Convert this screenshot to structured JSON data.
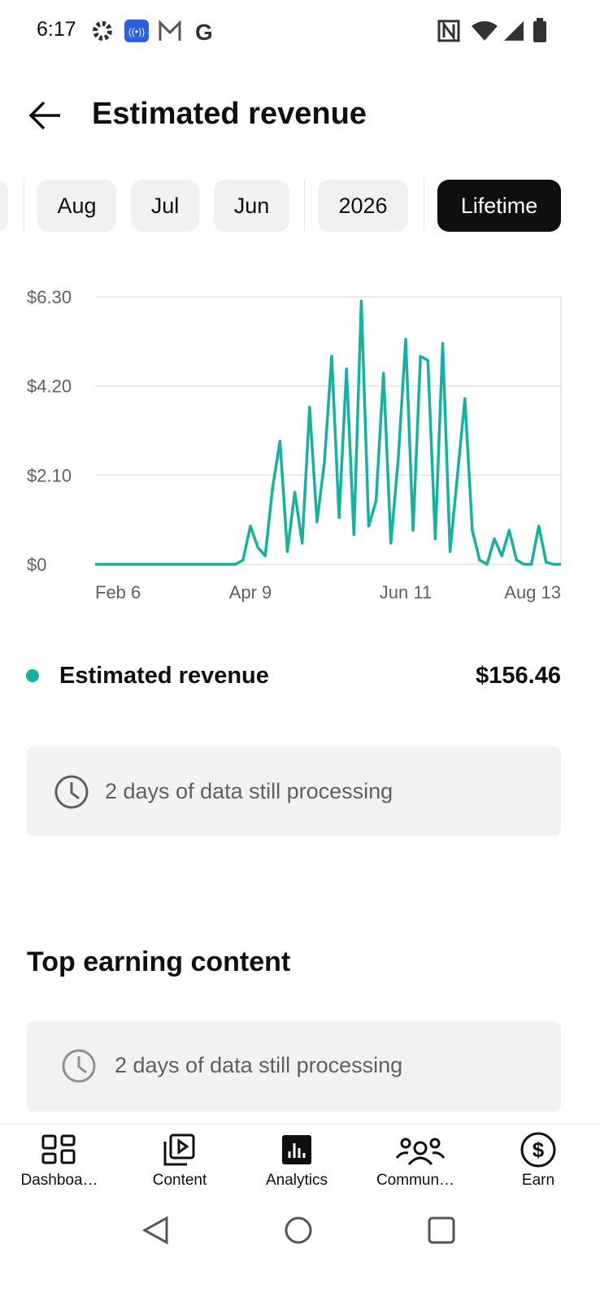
{
  "status_bar": {
    "time": "6:17"
  },
  "header": {
    "title": "Estimated revenue"
  },
  "filters": [
    "Aug",
    "Jul",
    "Jun",
    "2026",
    "Lifetime"
  ],
  "chart_data": {
    "type": "line",
    "categories": [
      "Feb 6",
      null,
      null,
      null,
      null,
      null,
      null,
      null,
      null,
      null,
      null,
      null,
      null,
      null,
      null,
      null,
      null,
      null,
      null,
      null,
      null,
      "Apr 9",
      null,
      null,
      null,
      null,
      null,
      null,
      null,
      null,
      null,
      null,
      null,
      null,
      null,
      null,
      null,
      null,
      null,
      null,
      null,
      null,
      "Jun 11",
      null,
      null,
      null,
      null,
      null,
      null,
      null,
      null,
      null,
      null,
      null,
      null,
      null,
      null,
      null,
      null,
      null,
      null,
      null,
      null,
      "Aug 13"
    ],
    "series": [
      {
        "name": "Estimated revenue",
        "color": "#14b3a0",
        "values": [
          0,
          0,
          0,
          0,
          0,
          0,
          0,
          0,
          0,
          0,
          0,
          0,
          0,
          0,
          0,
          0,
          0,
          0,
          0,
          0,
          0.1,
          0.9,
          0.4,
          0.2,
          1.8,
          2.9,
          0.3,
          1.7,
          0.5,
          3.7,
          1.0,
          2.4,
          4.9,
          1.1,
          4.6,
          0.7,
          6.2,
          0.9,
          1.5,
          4.5,
          0.5,
          2.5,
          5.3,
          0.8,
          4.9,
          4.8,
          0.6,
          5.2,
          0.3,
          2.1,
          3.9,
          0.8,
          0.1,
          0,
          0.6,
          0.2,
          0.8,
          0.1,
          0,
          0,
          0.9,
          0.05,
          0,
          0
        ]
      }
    ],
    "ylim": [
      0,
      6.3
    ],
    "yticks": [
      {
        "value": 0,
        "label": "$0"
      },
      {
        "value": 2.1,
        "label": "$2.10"
      },
      {
        "value": 4.2,
        "label": "$4.20"
      },
      {
        "value": 6.3,
        "label": "$6.30"
      }
    ],
    "grid": true
  },
  "summary": {
    "value": "$156.46"
  },
  "processing_note": "2 days of data still processing",
  "section_title": "Top earning content",
  "section_note": "2 days of data still processing",
  "nav": [
    "Dashboa…",
    "Content",
    "Analytics",
    "Commun…",
    "Earn"
  ]
}
